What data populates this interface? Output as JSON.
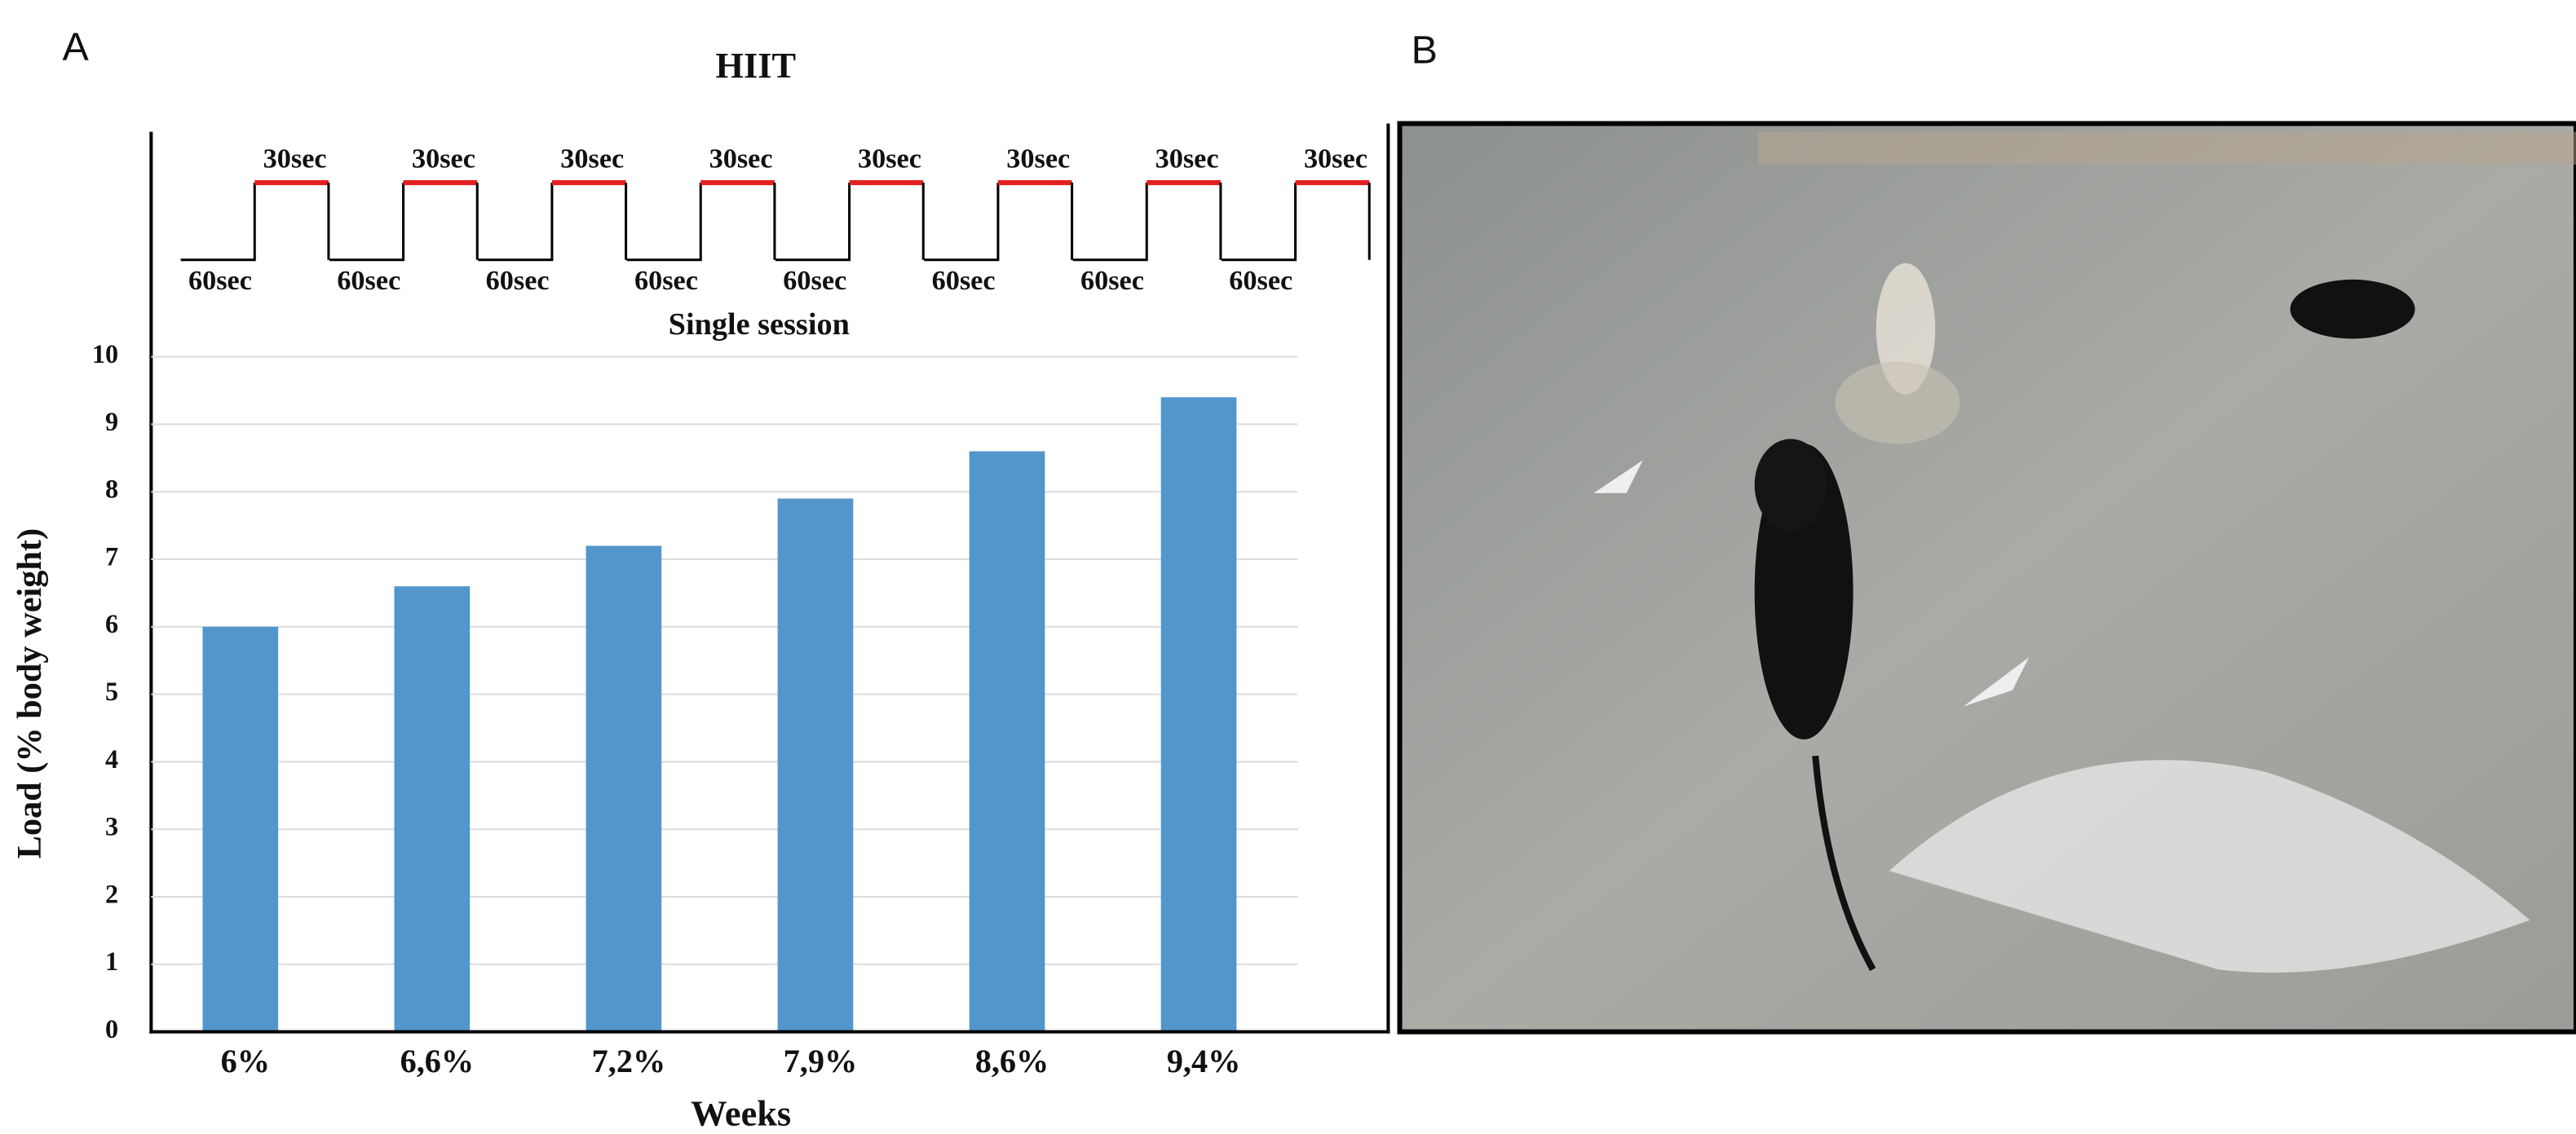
{
  "panels": [
    "A",
    "B"
  ],
  "chart_data": {
    "type": "bar",
    "title": "HIIT",
    "x_label": "Weeks",
    "y_label": "Load (% body weight)",
    "categories": [
      "6%",
      "6,6%",
      "7,2%",
      "7,9%",
      "8,6%",
      "9,4%"
    ],
    "values": [
      6,
      6.6,
      7.2,
      7.9,
      8.6,
      9.4
    ],
    "color": "#5296cc",
    "ylim": [
      0,
      10
    ],
    "yticks": [
      0,
      1,
      2,
      3,
      4,
      5,
      6,
      7,
      8,
      9,
      10
    ],
    "grid": true
  },
  "schematic": {
    "high_labels": [
      "30sec",
      "30sec",
      "30sec",
      "30sec",
      "30sec",
      "30sec",
      "30sec",
      "30sec"
    ],
    "low_labels": [
      "60sec",
      "60sec",
      "60sec",
      "60sec",
      "60sec",
      "60sec",
      "60sec",
      "60sec"
    ],
    "caption": "Single session"
  }
}
